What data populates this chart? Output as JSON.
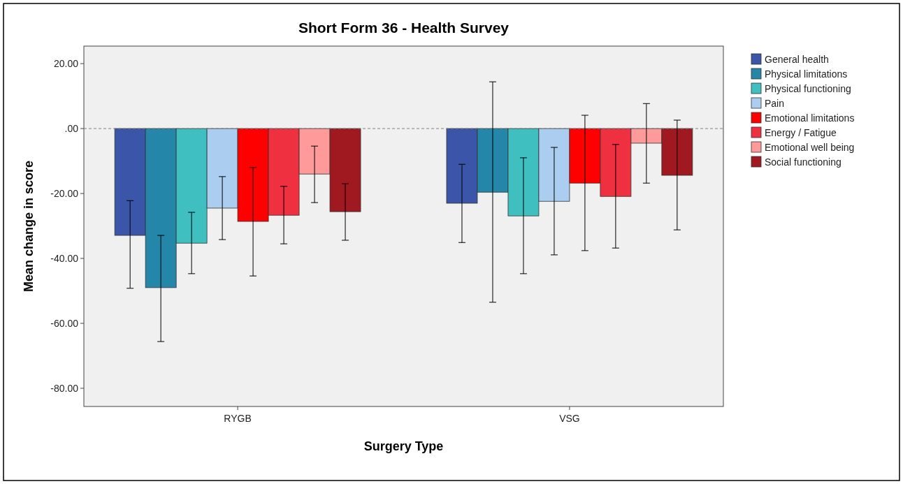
{
  "chart_data": {
    "type": "bar",
    "title": "Short Form 36 - Health Survey",
    "xlabel": "Surgery Type",
    "ylabel": "Mean change in score",
    "categories": [
      "RYGB",
      "VSG"
    ],
    "series": [
      {
        "name": "General health",
        "color": "#3b55a8",
        "values": [
          -32.9,
          -23.0
        ],
        "errors": [
          [
            -49.2,
            -22.2
          ],
          [
            -35.1,
            -11.0
          ]
        ]
      },
      {
        "name": "Physical limitations",
        "color": "#2486a8",
        "values": [
          -49.0,
          -19.6
        ],
        "errors": [
          [
            -65.6,
            -32.9
          ],
          [
            -53.5,
            14.4
          ]
        ]
      },
      {
        "name": "Physical functioning",
        "color": "#40bfc0",
        "values": [
          -35.3,
          -26.9
        ],
        "errors": [
          [
            -44.7,
            -25.8
          ],
          [
            -44.7,
            -9.0
          ]
        ]
      },
      {
        "name": "Pain",
        "color": "#aacdf0",
        "values": [
          -24.5,
          -22.4
        ],
        "errors": [
          [
            -34.2,
            -14.8
          ],
          [
            -38.9,
            -5.8
          ]
        ]
      },
      {
        "name": "Emotional limitations",
        "color": "#fe0000",
        "values": [
          -28.6,
          -16.8
        ],
        "errors": [
          [
            -45.4,
            -12.0
          ],
          [
            -37.6,
            4.1
          ]
        ]
      },
      {
        "name": "Energy / Fatigue",
        "color": "#ee3040",
        "values": [
          -26.7,
          -20.9
        ],
        "errors": [
          [
            -35.5,
            -17.8
          ],
          [
            -36.8,
            -4.9
          ]
        ]
      },
      {
        "name": "Emotional well being",
        "color": "#ff9a9a",
        "values": [
          -14.0,
          -4.5
        ],
        "errors": [
          [
            -22.8,
            -5.4
          ],
          [
            -16.8,
            7.7
          ]
        ]
      },
      {
        "name": "Social functioning",
        "color": "#a01820",
        "values": [
          -25.6,
          -14.4
        ],
        "errors": [
          [
            -34.4,
            -17.0
          ],
          [
            -31.2,
            2.6
          ]
        ]
      }
    ],
    "ylim": [
      -85.6,
      25.4
    ],
    "yticks": [
      {
        "value": 20,
        "label": "20.00"
      },
      {
        "value": 0,
        "label": ".00"
      },
      {
        "value": -20,
        "label": "-20.00"
      },
      {
        "value": -40,
        "label": "-40.00"
      },
      {
        "value": -60,
        "label": "-60.00"
      },
      {
        "value": -80,
        "label": "-80.00"
      }
    ],
    "ref_lines": [
      {
        "axis": "y",
        "value": 0,
        "color": "#808080",
        "line_style": "dashed"
      }
    ],
    "grid": false,
    "legend": "top right"
  }
}
